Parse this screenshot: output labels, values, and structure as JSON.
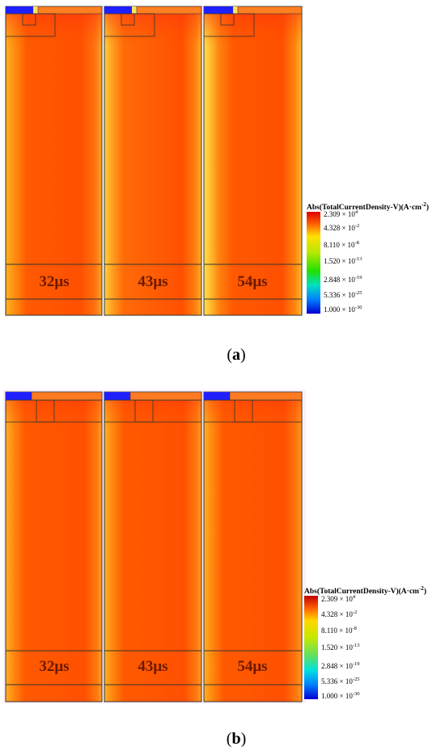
{
  "figure": {
    "panels": [
      {
        "label_text": "a",
        "snapshots": [
          "32μs",
          "43μs",
          "54μs"
        ]
      },
      {
        "label_text": "b",
        "snapshots": [
          "32μs",
          "43μs",
          "54μs"
        ]
      }
    ],
    "legend": {
      "title": "Abs(TotalCurrentDensity-V)(A·cm",
      "title_exp": "-2",
      "title_close": ")",
      "ticks": [
        {
          "mantissa": "2.309 × 10",
          "exp": "4"
        },
        {
          "mantissa": "4.328 × 10",
          "exp": "-2"
        },
        {
          "mantissa": "8.110 × 10",
          "exp": "-8"
        },
        {
          "mantissa": "1.520 × 10",
          "exp": "-13"
        },
        {
          "mantissa": "2.848 × 10",
          "exp": "-19"
        },
        {
          "mantissa": "5.336 × 10",
          "exp": "-25"
        },
        {
          "mantissa": "1.000 × 10",
          "exp": "-30"
        }
      ],
      "colors": [
        "#e00000",
        "#ff7a00",
        "#ffe600",
        "#9be000",
        "#10e000",
        "#00e0d0",
        "#0060ff",
        "#0000e0"
      ]
    },
    "field_colors": {
      "core": "#ff5000",
      "mid": "#ff7a10",
      "edge": "#ffa020",
      "rim": "#ffd040",
      "electrode": "#2020ff",
      "gate": "#ffe060"
    }
  }
}
